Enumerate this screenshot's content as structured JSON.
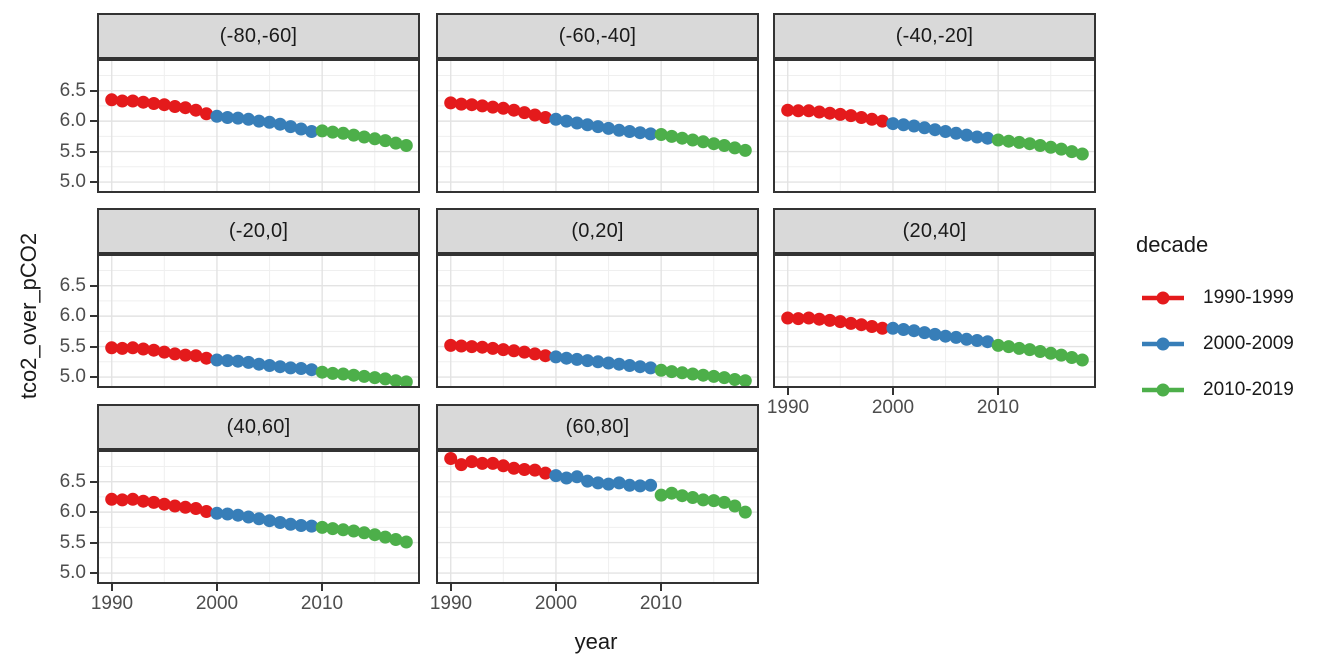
{
  "chart_data": {
    "type": "scatter",
    "title": "",
    "xlabel": "year",
    "ylabel": "tco2_over_pCO2",
    "x": [
      1990,
      1991,
      1992,
      1993,
      1994,
      1995,
      1996,
      1997,
      1998,
      1999,
      2000,
      2001,
      2002,
      2003,
      2004,
      2005,
      2006,
      2007,
      2008,
      2009,
      2010,
      2011,
      2012,
      2013,
      2014,
      2015,
      2016,
      2017,
      2018
    ],
    "x_ticks": [
      "1990",
      "2000",
      "2010"
    ],
    "x_tick_years": [
      1990,
      2000,
      2010
    ],
    "x_minor_years": [
      1995,
      2005,
      2015
    ],
    "y_ticks": [
      "6.5",
      "6.0",
      "5.5",
      "5.0"
    ],
    "y_tick_values": [
      6.5,
      6.0,
      5.5,
      5.0
    ],
    "y_minor_values": [
      6.75,
      6.25,
      5.75,
      5.25
    ],
    "xlim": [
      1988.6,
      2019.3
    ],
    "ylim": [
      4.82,
      7.02
    ],
    "grid": true,
    "legend": {
      "title": "decade",
      "position": "right",
      "entries": [
        {
          "label": "1990-1999",
          "color": "#E41A1C",
          "from": 1990,
          "to": 1999
        },
        {
          "label": "2000-2009",
          "color": "#377EB8",
          "from": 2000,
          "to": 2009
        },
        {
          "label": "2010-2019",
          "color": "#4DAF4A",
          "from": 2010,
          "to": 2019
        }
      ]
    },
    "facets": [
      {
        "label": "(-80,-60]",
        "values": [
          6.35,
          6.33,
          6.33,
          6.31,
          6.29,
          6.27,
          6.24,
          6.22,
          6.18,
          6.12,
          6.08,
          6.06,
          6.05,
          6.03,
          6.0,
          5.98,
          5.95,
          5.91,
          5.87,
          5.83,
          5.84,
          5.82,
          5.8,
          5.77,
          5.74,
          5.71,
          5.68,
          5.64,
          5.6
        ]
      },
      {
        "label": "(-60,-40]",
        "values": [
          6.3,
          6.28,
          6.27,
          6.25,
          6.23,
          6.21,
          6.18,
          6.14,
          6.1,
          6.06,
          6.03,
          6.0,
          5.97,
          5.94,
          5.91,
          5.88,
          5.85,
          5.83,
          5.81,
          5.79,
          5.78,
          5.75,
          5.72,
          5.69,
          5.66,
          5.63,
          5.6,
          5.56,
          5.52
        ]
      },
      {
        "label": "(-40,-20]",
        "values": [
          6.18,
          6.17,
          6.17,
          6.15,
          6.13,
          6.11,
          6.09,
          6.06,
          6.03,
          6.0,
          5.96,
          5.94,
          5.92,
          5.89,
          5.86,
          5.83,
          5.8,
          5.77,
          5.74,
          5.72,
          5.69,
          5.67,
          5.65,
          5.63,
          5.6,
          5.57,
          5.54,
          5.5,
          5.46
        ]
      },
      {
        "label": "(-20,0]",
        "values": [
          5.48,
          5.47,
          5.48,
          5.46,
          5.44,
          5.41,
          5.38,
          5.36,
          5.35,
          5.31,
          5.28,
          5.27,
          5.26,
          5.24,
          5.21,
          5.19,
          5.17,
          5.15,
          5.14,
          5.12,
          5.08,
          5.06,
          5.05,
          5.03,
          5.01,
          4.99,
          4.97,
          4.94,
          4.92
        ]
      },
      {
        "label": "(0,20]",
        "values": [
          5.52,
          5.51,
          5.5,
          5.49,
          5.47,
          5.45,
          5.43,
          5.41,
          5.38,
          5.35,
          5.33,
          5.31,
          5.29,
          5.27,
          5.25,
          5.23,
          5.21,
          5.19,
          5.17,
          5.15,
          5.11,
          5.09,
          5.07,
          5.05,
          5.03,
          5.01,
          4.99,
          4.96,
          4.94
        ]
      },
      {
        "label": "(20,40]",
        "values": [
          5.97,
          5.96,
          5.97,
          5.95,
          5.93,
          5.91,
          5.88,
          5.86,
          5.83,
          5.8,
          5.8,
          5.78,
          5.76,
          5.73,
          5.7,
          5.67,
          5.65,
          5.62,
          5.6,
          5.58,
          5.52,
          5.5,
          5.47,
          5.45,
          5.42,
          5.39,
          5.36,
          5.32,
          5.28
        ]
      },
      {
        "label": "(40,60]",
        "values": [
          6.21,
          6.2,
          6.21,
          6.18,
          6.16,
          6.13,
          6.1,
          6.08,
          6.06,
          6.01,
          5.98,
          5.97,
          5.95,
          5.92,
          5.89,
          5.86,
          5.83,
          5.8,
          5.78,
          5.77,
          5.75,
          5.73,
          5.71,
          5.69,
          5.66,
          5.63,
          5.59,
          5.55,
          5.51
        ]
      },
      {
        "label": "(60,80]",
        "values": [
          6.88,
          6.78,
          6.83,
          6.8,
          6.8,
          6.76,
          6.72,
          6.7,
          6.69,
          6.64,
          6.6,
          6.56,
          6.58,
          6.51,
          6.48,
          6.46,
          6.48,
          6.44,
          6.43,
          6.44,
          6.28,
          6.31,
          6.27,
          6.24,
          6.2,
          6.19,
          6.16,
          6.1,
          6.0
        ]
      }
    ]
  },
  "colors": {
    "background": "#FFFFFF",
    "strip_fill": "#D9D9D9",
    "panel_border": "#333333",
    "grid_major": "#E3E3E3",
    "grid_minor": "#EFEFEF",
    "tick_label": "#4D4D4D",
    "text": "#1A1A1A"
  }
}
